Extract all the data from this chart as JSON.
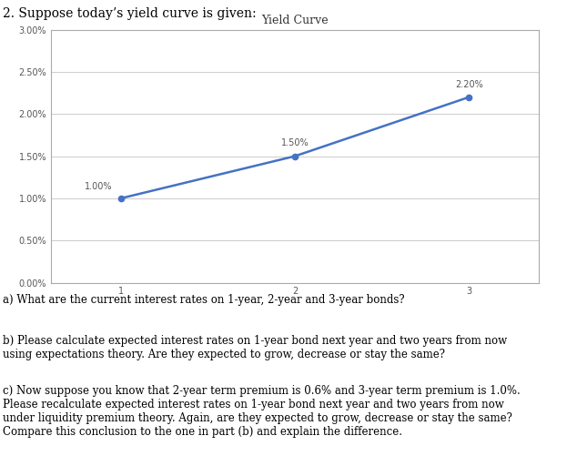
{
  "title_text": "2. Suppose today’s yield curve is given:",
  "chart_title": "Yield Curve",
  "x": [
    1,
    2,
    3
  ],
  "y": [
    0.01,
    0.015,
    0.022
  ],
  "point_labels": [
    "1.00%",
    "1.50%",
    "2.20%"
  ],
  "line_color": "#4472C4",
  "marker_color": "#4472C4",
  "ylim": [
    0,
    0.03
  ],
  "yticks": [
    0.0,
    0.005,
    0.01,
    0.015,
    0.02,
    0.025,
    0.03
  ],
  "ytick_labels": [
    "0.00%",
    "0.50%",
    "1.00%",
    "1.50%",
    "2.00%",
    "2.50%",
    "3.00%"
  ],
  "xticks": [
    1,
    2,
    3
  ],
  "background_color": "#ffffff",
  "plot_bg_color": "#ffffff",
  "grid_color": "#cccccc",
  "box_edge_color": "#aaaaaa",
  "title_fontsize": 9,
  "chart_title_fontsize": 9,
  "axis_fontsize": 7,
  "point_label_fontsize": 7,
  "question_a": "a) What are the current interest rates on 1-year, 2-year and 3-year bonds?",
  "question_b": "b) Please calculate expected interest rates on 1-year bond next year and two years from now\nusing expectations theory. Are they expected to grow, decrease or stay the same?",
  "question_c": "c) Now suppose you know that 2-year term premium is 0.6% and 3-year term premium is 1.0%.\nPlease recalculate expected interest rates on 1-year bond next year and two years from now\nunder liquidity premium theory. Again, are they expected to grow, decrease or stay the same?\nCompare this conclusion to the one in part (b) and explain the difference.",
  "text_fontsize": 8.5,
  "heading_fontsize": 10
}
